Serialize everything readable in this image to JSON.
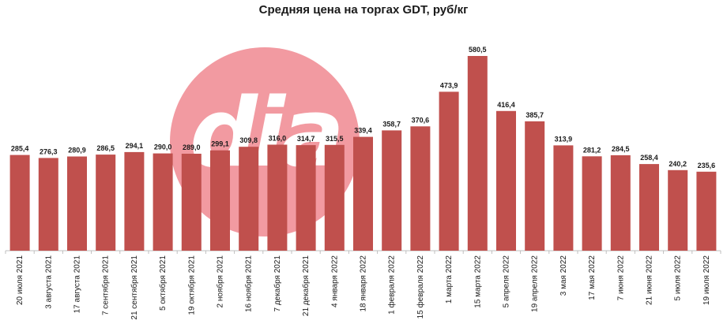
{
  "chart_data": {
    "type": "bar",
    "title": "Средняя цена на торгах GDT, руб/кг",
    "xlabel": "",
    "ylabel": "",
    "ylim": [
      0,
      600
    ],
    "grid": false,
    "bar_color": "#c0504d",
    "categories": [
      "20 июля 2021",
      "3 августа 2021",
      "17 августа 2021",
      "7 сентября 2021",
      "21 сентября 2021",
      "5 октября 2021",
      "19 октября 2021",
      "2 ноября 2021",
      "16 ноября 2021",
      "7 декабря 2021",
      "21 декабря 2021",
      "4 января 2022",
      "18 января 2022",
      "1 февраля 2022",
      "15 февраля 2022",
      "1 марта 2022",
      "15 марта 2022",
      "5 апреля 2022",
      "19 апреля 2022",
      "3 мая 2022",
      "17 мая 2022",
      "7 июня 2022",
      "21 июня 2022",
      "5 июля 2022",
      "19 июля 2022"
    ],
    "values": [
      285.4,
      276.3,
      280.9,
      286.5,
      294.1,
      290.0,
      289.0,
      299.1,
      309.8,
      316.0,
      314.7,
      315.5,
      339.4,
      358.7,
      370.6,
      473.9,
      580.5,
      416.4,
      385.7,
      313.9,
      281.2,
      284.5,
      258.4,
      240.2,
      235.6
    ],
    "labels": [
      "285,4",
      "276,3",
      "280,9",
      "286,5",
      "294,1",
      "290,0",
      "289,0",
      "299,1",
      "309,8",
      "316,0",
      "314,7",
      "315,5",
      "339,4",
      "358,7",
      "370,6",
      "473,9",
      "580,5",
      "416,4",
      "385,7",
      "313,9",
      "281,2",
      "284,5",
      "258,4",
      "240,2",
      "235,6"
    ]
  },
  "watermark": {
    "text": "dia",
    "color": "#f29aa1"
  }
}
